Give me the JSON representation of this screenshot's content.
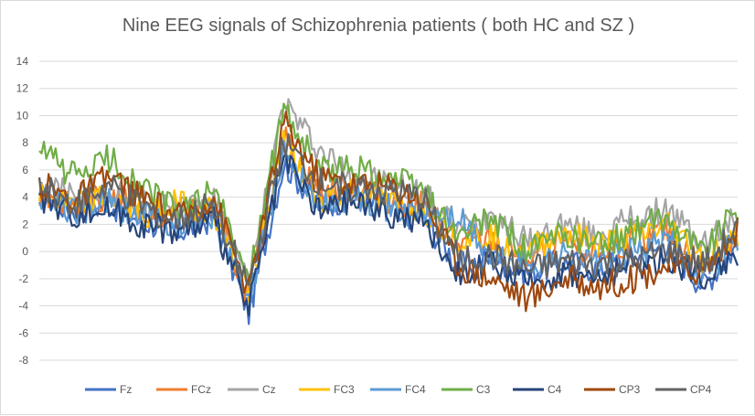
{
  "chart_data": {
    "type": "line",
    "title": "Nine EEG signals of Schizophrenia patients ( both HC and SZ )",
    "xlabel": "",
    "ylabel": "",
    "ylim": [
      -8,
      14
    ],
    "yticks": [
      14,
      12,
      10,
      8,
      6,
      4,
      2,
      0,
      -2,
      -4,
      -6,
      -8
    ],
    "grid": true,
    "legend_position": "bottom",
    "x": [
      0,
      5,
      10,
      15,
      20,
      25,
      30,
      35,
      40,
      45,
      50,
      55,
      60,
      65,
      70,
      75,
      80,
      85,
      90,
      95,
      100
    ],
    "series": [
      {
        "name": "Fz",
        "color": "#4472C4",
        "values": [
          4.2,
          3.0,
          3.5,
          2.2,
          1.5,
          2.5,
          -4.5,
          6.5,
          3.5,
          4.0,
          3.0,
          2.5,
          -1.0,
          -0.5,
          -1.5,
          -0.8,
          -1.2,
          -0.5,
          0.5,
          -2.5,
          0.5
        ]
      },
      {
        "name": "FCz",
        "color": "#ED7D31",
        "values": [
          4.5,
          3.5,
          4.2,
          3.0,
          2.5,
          3.2,
          -3.5,
          8.5,
          4.2,
          4.8,
          3.8,
          3.5,
          0.5,
          0.8,
          -0.5,
          0.5,
          -0.2,
          0.8,
          1.5,
          -1.2,
          1.5
        ]
      },
      {
        "name": "Cz",
        "color": "#A5A5A5",
        "values": [
          5.0,
          4.0,
          4.5,
          3.5,
          3.5,
          3.8,
          -2.5,
          11.0,
          7.5,
          5.5,
          5.0,
          4.2,
          1.5,
          3.0,
          0.5,
          2.0,
          1.0,
          2.5,
          3.0,
          0.5,
          2.5
        ]
      },
      {
        "name": "FC3",
        "color": "#FFC000",
        "values": [
          4.3,
          3.2,
          4.0,
          2.8,
          3.5,
          3.0,
          -3.0,
          8.0,
          3.8,
          4.5,
          3.5,
          3.2,
          1.0,
          1.2,
          0.0,
          1.5,
          0.5,
          1.0,
          2.0,
          -0.5,
          1.0
        ]
      },
      {
        "name": "FC4",
        "color": "#5B9BD5",
        "values": [
          4.0,
          3.0,
          3.8,
          2.5,
          2.0,
          2.8,
          -4.0,
          7.5,
          3.2,
          4.2,
          3.2,
          2.8,
          2.5,
          -0.5,
          -1.0,
          -0.2,
          -0.8,
          0.0,
          0.8,
          -1.8,
          0.8
        ]
      },
      {
        "name": "C3",
        "color": "#70AD47",
        "values": [
          7.5,
          5.5,
          6.8,
          4.5,
          3.0,
          4.5,
          -2.0,
          10.5,
          6.0,
          6.2,
          5.5,
          4.5,
          1.0,
          2.5,
          0.0,
          1.2,
          0.5,
          1.5,
          2.5,
          0.0,
          3.0
        ]
      },
      {
        "name": "C4",
        "color": "#264478",
        "values": [
          4.0,
          2.8,
          3.2,
          2.0,
          1.5,
          2.2,
          -4.2,
          6.8,
          3.0,
          3.8,
          2.8,
          2.2,
          -1.5,
          -1.0,
          -2.5,
          -1.5,
          -2.0,
          -1.2,
          -0.5,
          -2.0,
          0.0
        ]
      },
      {
        "name": "CP3",
        "color": "#9E480E",
        "values": [
          5.0,
          3.8,
          5.5,
          3.8,
          2.5,
          4.0,
          -3.0,
          9.5,
          5.5,
          5.0,
          4.8,
          4.0,
          -1.0,
          -2.0,
          -3.5,
          -2.0,
          -2.5,
          -2.0,
          -1.0,
          -1.5,
          1.5
        ]
      },
      {
        "name": "CP4",
        "color": "#636363",
        "values": [
          4.8,
          3.5,
          4.8,
          3.2,
          2.2,
          3.5,
          -2.8,
          8.0,
          5.0,
          4.8,
          4.5,
          3.8,
          -0.5,
          -0.5,
          -1.5,
          -0.8,
          -1.0,
          -0.8,
          0.0,
          -1.0,
          1.5
        ]
      }
    ]
  }
}
